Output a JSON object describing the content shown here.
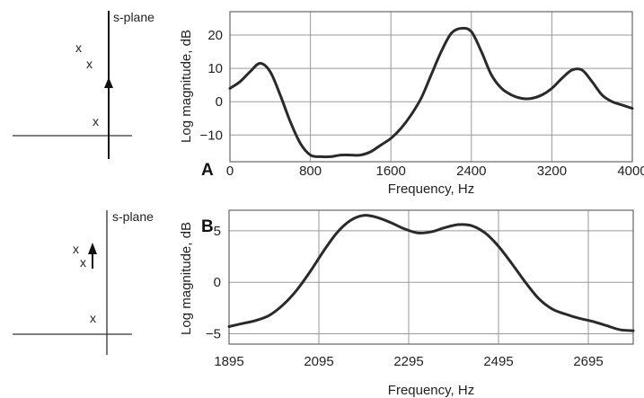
{
  "chart_data": [
    {
      "type": "line",
      "panel_label": "A",
      "title": "",
      "xlabel": "Frequency, Hz",
      "ylabel": "Log magnitude, dB",
      "xlim": [
        0,
        4000
      ],
      "ylim": [
        -18,
        27
      ],
      "xticks": [
        0,
        800,
        1600,
        2400,
        3200,
        4000
      ],
      "xtick_labels": [
        "0",
        "800",
        "1600",
        "2400",
        "3200",
        "4000"
      ],
      "yticks": [
        -10,
        0,
        10,
        20
      ],
      "ytick_labels": [
        "−10",
        "0",
        "10",
        "20"
      ],
      "grid": true,
      "series": [
        {
          "x": [
            0,
            100,
            200,
            300,
            400,
            500,
            600,
            700,
            800,
            900,
            1000,
            1100,
            1200,
            1300,
            1400,
            1500,
            1600,
            1700,
            1800,
            1900,
            2000,
            2100,
            2200,
            2300,
            2400,
            2500,
            2600,
            2700,
            2800,
            2900,
            3000,
            3100,
            3200,
            3300,
            3400,
            3500,
            3600,
            3700,
            3800,
            3900,
            4000
          ],
          "y": [
            4,
            6,
            9,
            11.5,
            9,
            2,
            -6,
            -12.5,
            -16,
            -16.5,
            -16.5,
            -16,
            -16,
            -16,
            -15,
            -13,
            -11,
            -8,
            -4,
            1,
            8,
            15,
            20.5,
            22,
            21,
            15,
            8,
            4,
            2,
            1,
            1,
            2,
            4,
            7,
            9.5,
            9.5,
            6,
            2,
            0,
            -1,
            -2
          ]
        }
      ],
      "s_plane": {
        "label": "s-plane",
        "pole_mark": "x",
        "pole_count": 3
      }
    },
    {
      "type": "line",
      "panel_label": "B",
      "title": "",
      "xlabel": "Frequency, Hz",
      "ylabel": "Log magnitude, dB",
      "xlim": [
        1895,
        2795
      ],
      "ylim": [
        -6,
        7
      ],
      "xticks": [
        1895,
        2095,
        2295,
        2495,
        2695
      ],
      "xtick_labels": [
        "1895",
        "2095",
        "2295",
        "2495",
        "2695"
      ],
      "yticks": [
        -5,
        0,
        5
      ],
      "ytick_labels": [
        "−5",
        "0",
        "5"
      ],
      "grid": true,
      "series": [
        {
          "x": [
            1895,
            1925,
            1955,
            1985,
            2015,
            2045,
            2075,
            2105,
            2135,
            2165,
            2195,
            2225,
            2255,
            2285,
            2315,
            2345,
            2375,
            2405,
            2435,
            2465,
            2495,
            2525,
            2555,
            2585,
            2615,
            2645,
            2675,
            2705,
            2735,
            2765,
            2795
          ],
          "y": [
            -4.3,
            -4,
            -3.7,
            -3.2,
            -2.2,
            -0.8,
            1,
            3,
            4.8,
            6,
            6.5,
            6.3,
            5.8,
            5.2,
            4.8,
            4.9,
            5.3,
            5.6,
            5.5,
            4.8,
            3.5,
            1.8,
            0,
            -1.6,
            -2.6,
            -3.1,
            -3.5,
            -3.8,
            -4.2,
            -4.6,
            -4.7
          ]
        }
      ],
      "s_plane": {
        "label": "s-plane",
        "pole_mark": "x",
        "pole_count": 3
      }
    }
  ]
}
